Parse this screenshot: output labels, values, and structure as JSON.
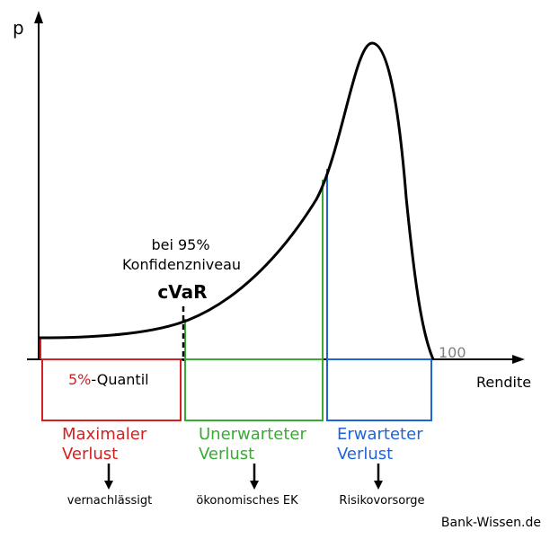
{
  "axis": {
    "y_label": "p",
    "x_label": "Rendite",
    "x_end_value": "100"
  },
  "annotation": {
    "line1": "bei 95%",
    "line2": "Konfidenzniveau",
    "cvar": "cVaR"
  },
  "quantile": {
    "percent": "5%",
    "label": "-Quantil"
  },
  "regions": [
    {
      "line1": "Maximaler",
      "line2": "Verlust",
      "consequence": "vernachlässigt",
      "color": "#d42020"
    },
    {
      "line1": "Unerwarteter",
      "line2": "Verlust",
      "consequence": "ökonomisches EK",
      "color": "#3aaa35"
    },
    {
      "line1": "Erwarteter",
      "line2": "Verlust",
      "consequence": "Risikovorsorge",
      "color": "#1e64d8"
    }
  ],
  "source": "Bank-Wissen.de",
  "colors": {
    "curve": "#000000",
    "axis": "#000000",
    "tick_gray": "#808080"
  }
}
